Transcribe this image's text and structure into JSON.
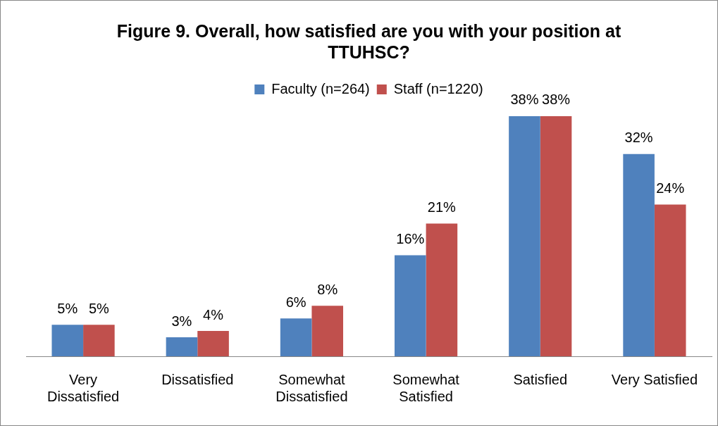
{
  "chart_data": {
    "type": "bar",
    "title": "Figure 9. Overall, how satisfied are you with your position at TTUHSC?",
    "categories": [
      "Very Dissatisfied",
      "Dissatisfied",
      "Somewhat Dissatisfied",
      "Somewhat Satisfied",
      "Satisfied",
      "Very Satisfied"
    ],
    "series": [
      {
        "name": "Faculty (n=264)",
        "color": "#4f81bd",
        "values": [
          5,
          3,
          6,
          16,
          38,
          32
        ],
        "value_labels": [
          "5%",
          "3%",
          "6%",
          "16%",
          "38%",
          "32%"
        ]
      },
      {
        "name": "Staff (n=1220)",
        "color": "#c0504d",
        "values": [
          5,
          4,
          8,
          21,
          38,
          24
        ],
        "value_labels": [
          "5%",
          "4%",
          "8%",
          "21%",
          "38%",
          "24%"
        ]
      }
    ],
    "legend": "top"
  }
}
